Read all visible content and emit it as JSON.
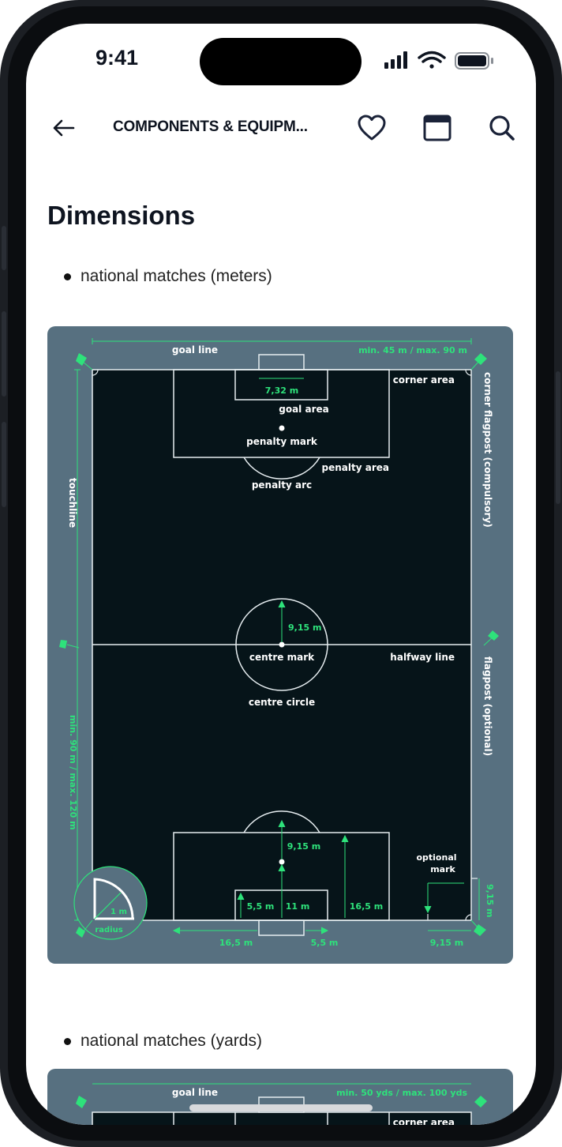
{
  "status_bar": {
    "time": "9:41"
  },
  "nav": {
    "title": "COMPONENTS & EQUIPM...",
    "icons": [
      "back-arrow-icon",
      "heart-icon",
      "window-icon",
      "search-icon"
    ]
  },
  "page": {
    "heading": "Dimensions",
    "bullet_meters": "national matches (meters)",
    "bullet_yards": "national matches (yards)"
  },
  "diagram_meters": {
    "colors": {
      "card": "#577080",
      "pitch": "#061419",
      "line": "#e6edf0",
      "accent": "#2ee27b"
    },
    "labels": {
      "goal_line": "goal line",
      "width": "min. 45 m / max. 90 m",
      "goal_width": "7,32 m",
      "corner_area": "corner area",
      "corner_flagpost": "corner flagpost (compulsory)",
      "goal_area": "goal area",
      "penalty_mark": "penalty mark",
      "penalty_area": "penalty area",
      "penalty_arc": "penalty arc",
      "touchline": "touchline",
      "centre_radius": "9,15 m",
      "centre_mark": "centre mark",
      "halfway_line": "halfway line",
      "flagpost_optional": "flagpost (optional)",
      "centre_circle": "centre circle",
      "length": "min. 90 m / max. 120 m",
      "penalty_distance": "9,15 m",
      "optional_mark_1": "optional",
      "optional_mark_2": "mark",
      "corner_radius": "1 m",
      "radius": "radius",
      "goal_area_depth": "5,5 m",
      "penalty_mark_distance": "11 m",
      "penalty_area_depth": "16,5 m",
      "side_gap_9_15": "9,15 m",
      "bottom_16_5": "16,5 m",
      "bottom_5_5": "5,5 m",
      "bottom_9_15": "9,15 m"
    }
  },
  "diagram_yards": {
    "labels": {
      "goal_line": "goal line",
      "width": "min. 50 yds / max. 100 yds",
      "corner_area": "corner area"
    }
  }
}
